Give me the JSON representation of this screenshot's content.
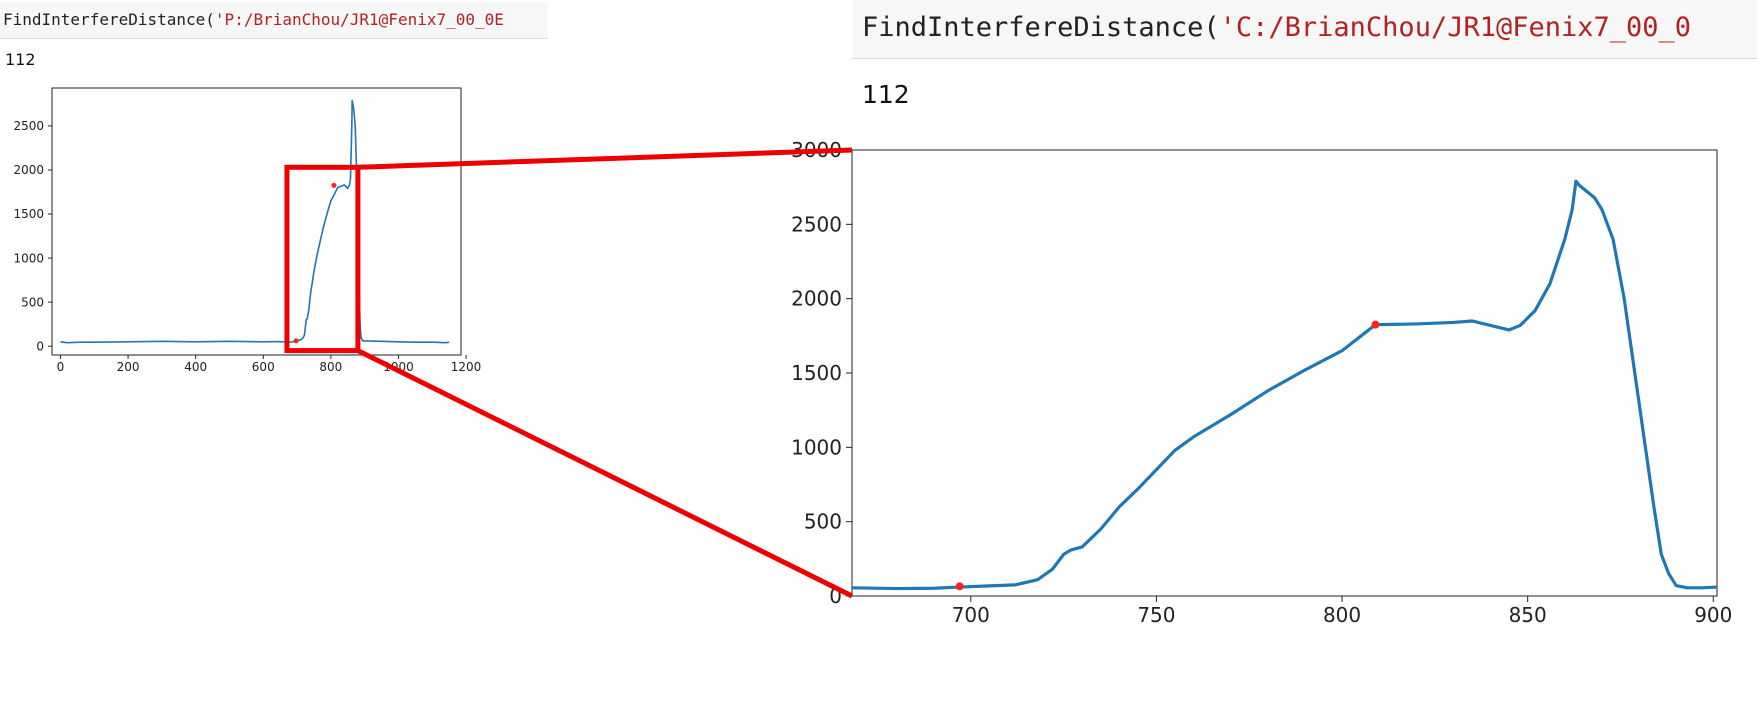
{
  "left_panel": {
    "code_func": "FindInterfereDistance(",
    "code_str": "'P:/BrianChou/JR1@Fenix7_00_0E",
    "output": "112"
  },
  "right_panel": {
    "code_func": "FindInterfereDistance(",
    "code_str": "'C:/BrianChou/JR1@Fenix7_00_0",
    "output": "112"
  },
  "colors": {
    "line": "#1f77b4",
    "marker": "#ff2020",
    "zoom_box": "#ee0000"
  },
  "chart_data": [
    {
      "type": "line",
      "name": "full-view",
      "xlim": [
        -25,
        1185
      ],
      "ylim": [
        -100,
        2930
      ],
      "xticks": [
        0,
        200,
        400,
        600,
        800,
        1000,
        1200
      ],
      "yticks": [
        0,
        500,
        1000,
        1500,
        2000,
        2500
      ],
      "grid": false,
      "series": [
        {
          "x": [
            0,
            20,
            60,
            100,
            200,
            300,
            400,
            500,
            600,
            650,
            672,
            685,
            695,
            700,
            706,
            712,
            718,
            722,
            727,
            730,
            735,
            740,
            745,
            750,
            760,
            770,
            780,
            790,
            800,
            810,
            820,
            830,
            840,
            845,
            850,
            855,
            858,
            860,
            862,
            863,
            865,
            868,
            872,
            876,
            880,
            884,
            886,
            888,
            890,
            895,
            900,
            950,
            1000,
            1050,
            1100,
            1140,
            1150
          ],
          "y": [
            50,
            40,
            45,
            45,
            50,
            55,
            50,
            55,
            50,
            52,
            45,
            48,
            55,
            65,
            68,
            75,
            95,
            130,
            300,
            310,
            420,
            600,
            720,
            850,
            1050,
            1220,
            1380,
            1520,
            1650,
            1720,
            1800,
            1815,
            1830,
            1810,
            1790,
            1830,
            1900,
            2200,
            2500,
            2790,
            2750,
            2680,
            2500,
            2000,
            1300,
            600,
            300,
            150,
            90,
            60,
            60,
            55,
            50,
            45,
            45,
            40,
            45
          ]
        }
      ],
      "markers": [
        {
          "x": 697,
          "y": 60
        },
        {
          "x": 809,
          "y": 1825
        }
      ],
      "zoom_region": {
        "x": [
          670,
          880
        ],
        "y": [
          -50,
          2030
        ]
      }
    },
    {
      "type": "line",
      "name": "zoomed-view",
      "xlim": [
        668,
        901
      ],
      "ylim": [
        0,
        3000
      ],
      "xticks": [
        700,
        750,
        800,
        850,
        900
      ],
      "yticks": [
        0,
        500,
        1000,
        1500,
        2000,
        2500,
        3000
      ],
      "grid": false,
      "series": [
        {
          "x": [
            668,
            680,
            690,
            697,
            705,
            712,
            718,
            722,
            725,
            727,
            730,
            735,
            740,
            745,
            750,
            755,
            760,
            770,
            780,
            790,
            800,
            809,
            820,
            830,
            835,
            840,
            845,
            848,
            852,
            856,
            860,
            862,
            863,
            864,
            866,
            868,
            870,
            873,
            876,
            880,
            884,
            886,
            888,
            890,
            893,
            897,
            901
          ],
          "y": [
            55,
            50,
            52,
            60,
            68,
            75,
            110,
            180,
            280,
            310,
            330,
            450,
            600,
            720,
            850,
            980,
            1070,
            1220,
            1380,
            1520,
            1650,
            1825,
            1830,
            1840,
            1850,
            1820,
            1790,
            1820,
            1920,
            2100,
            2400,
            2600,
            2790,
            2760,
            2720,
            2680,
            2600,
            2400,
            2000,
            1300,
            600,
            280,
            150,
            70,
            55,
            55,
            60
          ]
        }
      ],
      "markers": [
        {
          "x": 697,
          "y": 65
        },
        {
          "x": 809,
          "y": 1825
        }
      ]
    }
  ]
}
